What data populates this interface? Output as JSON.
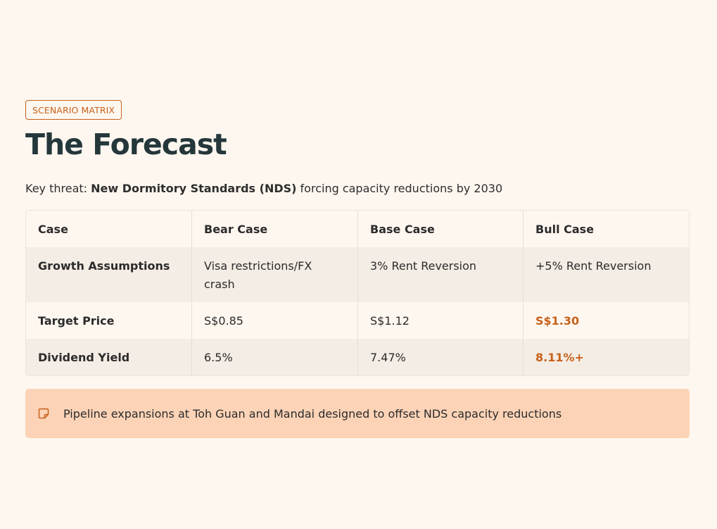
{
  "header": {
    "tag": "SCENARIO MATRIX",
    "title": "The Forecast"
  },
  "key_threat": {
    "prefix": "Key threat:",
    "highlight": "New Dormitory Standards (NDS)",
    "suffix": "forcing capacity reductions by 2030"
  },
  "matrix": {
    "columns": [
      "Case",
      "Bear Case",
      "Base Case",
      "Bull Case"
    ],
    "rows": [
      {
        "label": "Growth Assumptions",
        "bear": "Visa restrictions/FX crash",
        "base": "3% Rent Reversion",
        "bull": "+5% Rent Reversion"
      },
      {
        "label": "Target Price",
        "bear": "S$0.85",
        "base": "S$1.12",
        "bull": "S$1.30"
      },
      {
        "label": "Dividend Yield",
        "bear": "6.5%",
        "base": "7.47%",
        "bull": "8.11%+"
      }
    ]
  },
  "note": {
    "icon": "note-icon",
    "text": "Pipeline expansions at Toh Guan and Mandai designed to offset NDS capacity reductions"
  },
  "colors": {
    "background": "#fef7f0",
    "accent": "#c7611b",
    "title": "#24373a",
    "note_bg": "#fcd3b6"
  }
}
